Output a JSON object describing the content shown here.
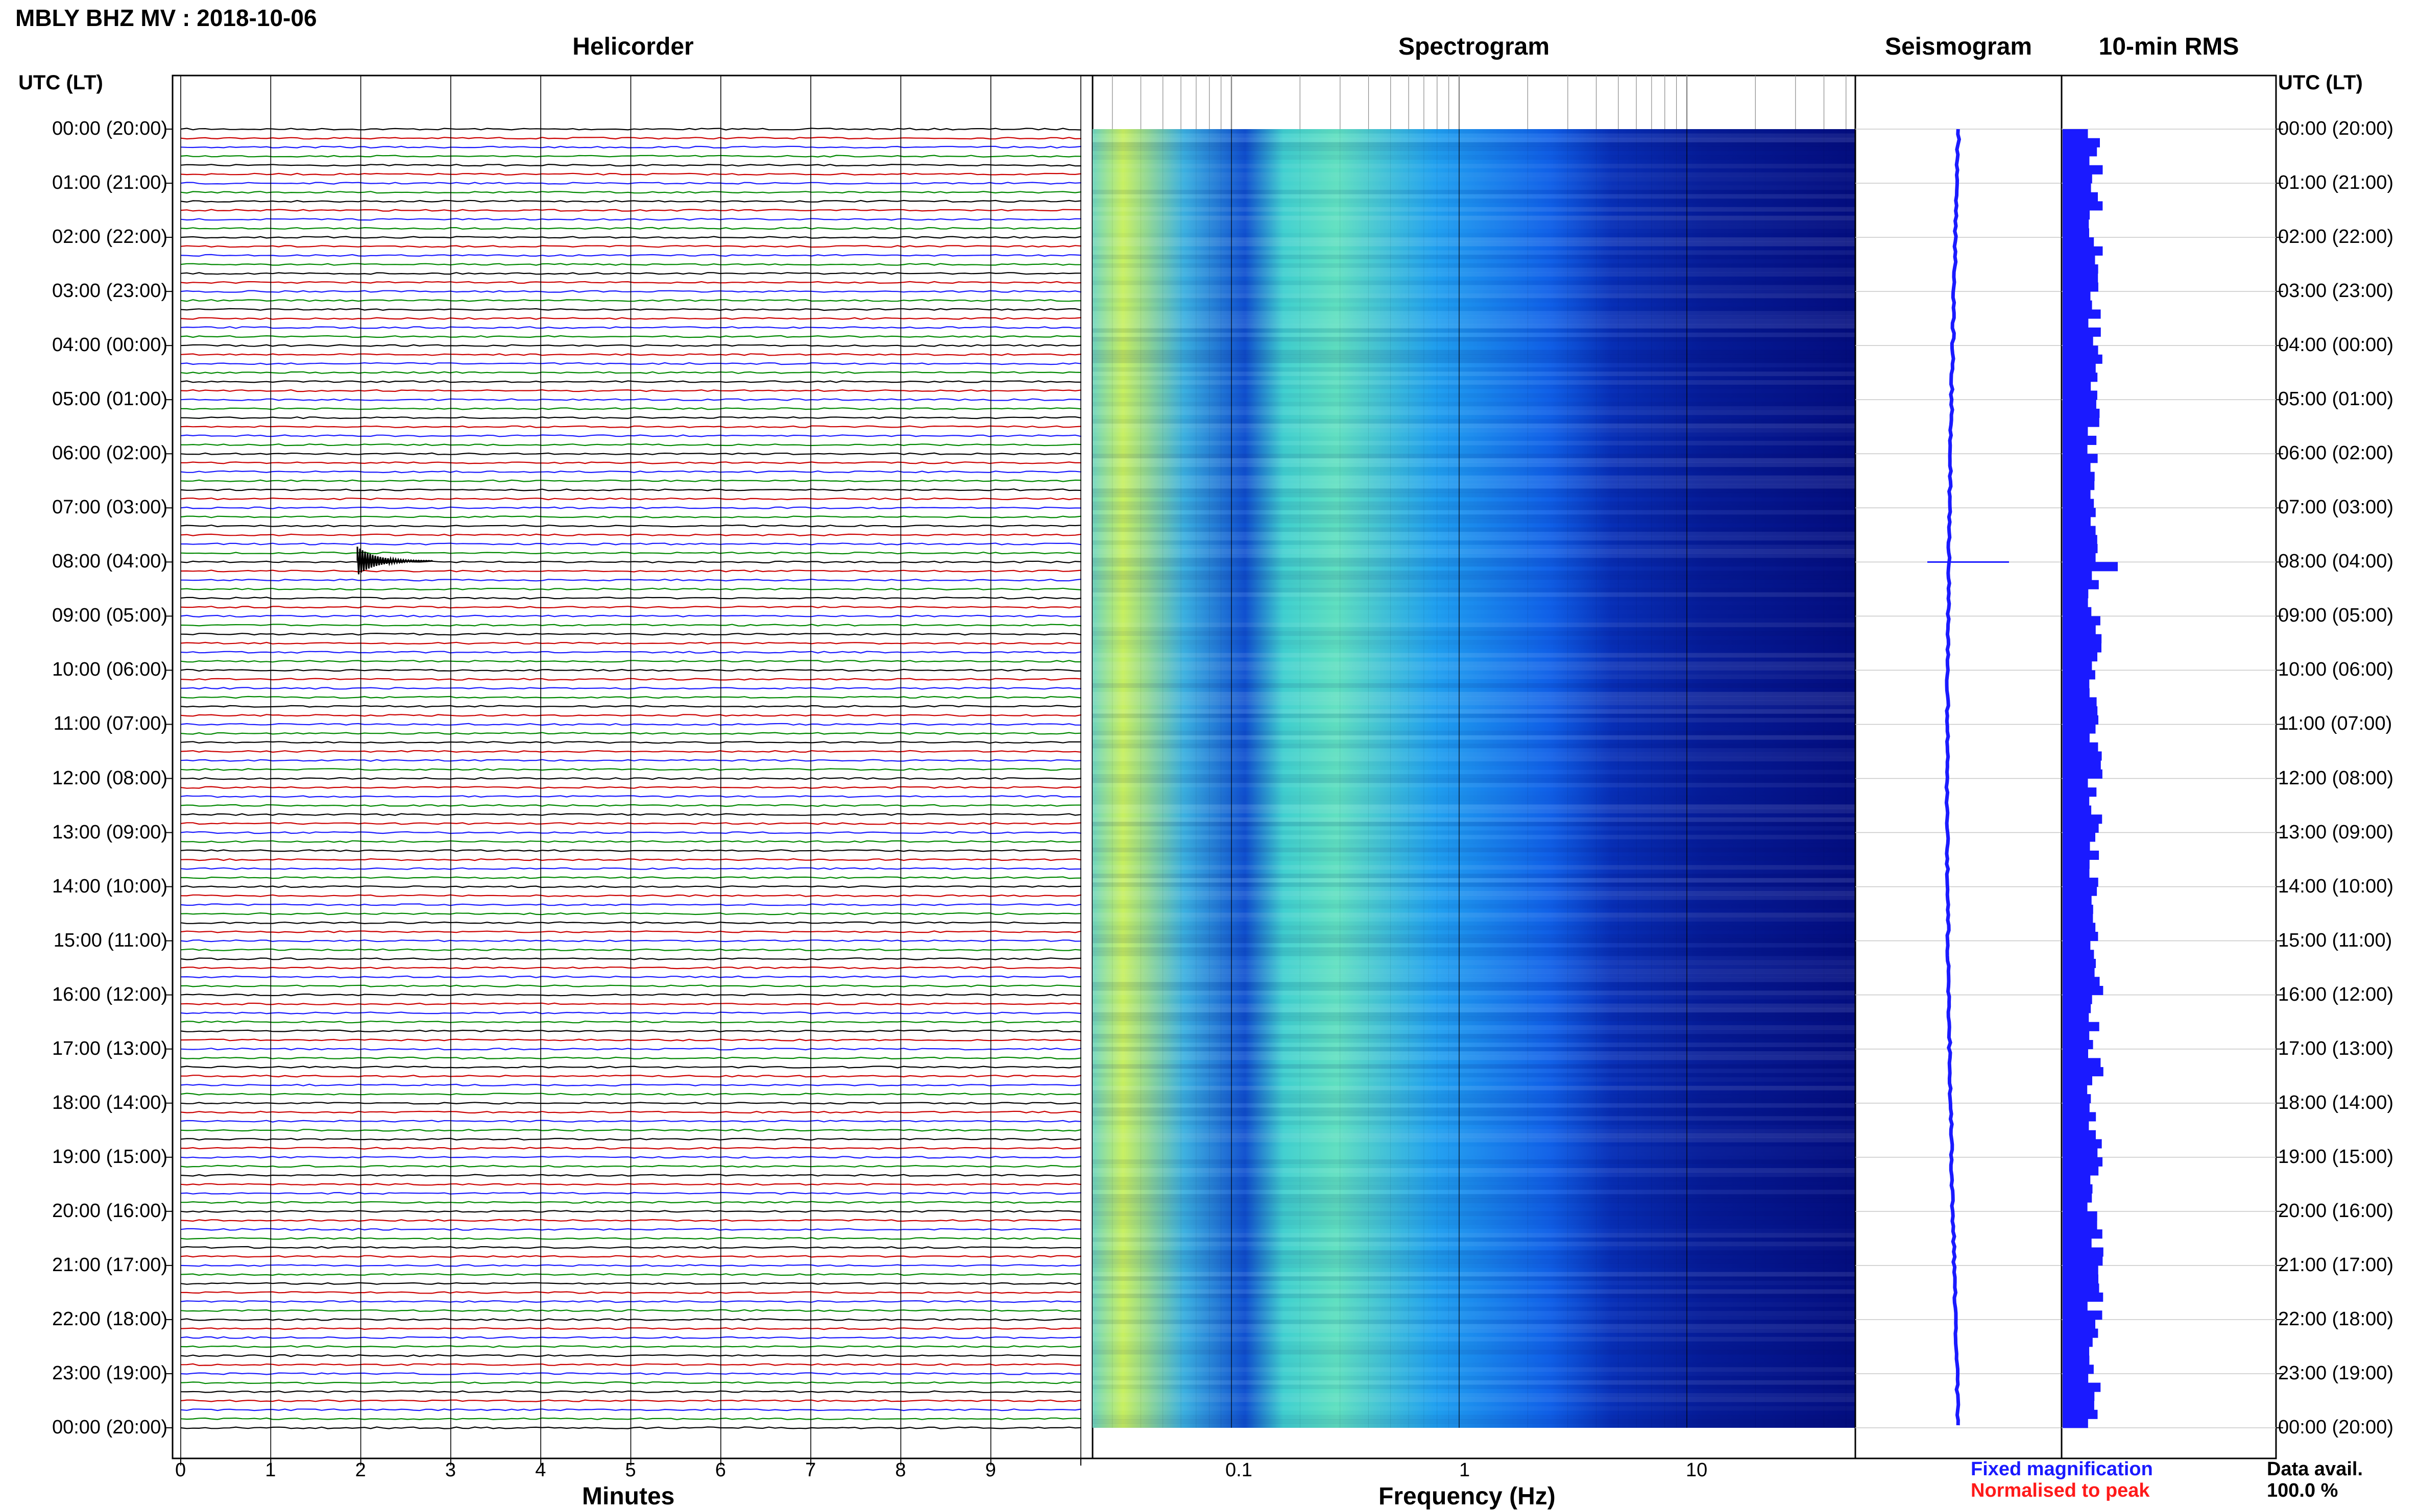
{
  "page_title": "MBLY BHZ MV : 2018-10-06",
  "panels": {
    "helicorder": "Helicorder",
    "spectrogram": "Spectrogram",
    "seismogram": "Seismogram",
    "rms": "10-min RMS"
  },
  "time_axis": {
    "header": "UTC (LT)",
    "ticks": [
      "00:00 (20:00)",
      "01:00 (21:00)",
      "02:00 (22:00)",
      "03:00 (23:00)",
      "04:00 (00:00)",
      "05:00 (01:00)",
      "06:00 (02:00)",
      "07:00 (03:00)",
      "08:00 (04:00)",
      "09:00 (05:00)",
      "10:00 (06:00)",
      "11:00 (07:00)",
      "12:00 (08:00)",
      "13:00 (09:00)",
      "14:00 (10:00)",
      "15:00 (11:00)",
      "16:00 (12:00)",
      "17:00 (13:00)",
      "18:00 (14:00)",
      "19:00 (15:00)",
      "20:00 (16:00)",
      "21:00 (17:00)",
      "22:00 (18:00)",
      "23:00 (19:00)",
      "00:00 (20:00)"
    ]
  },
  "helicorder_axis": {
    "title": "Minutes",
    "ticks": [
      "0",
      "1",
      "2",
      "3",
      "4",
      "5",
      "6",
      "7",
      "8",
      "9"
    ]
  },
  "spectrogram_axis": {
    "title": "Frequency (Hz)",
    "ticks": [
      "0.1",
      "1",
      "10"
    ]
  },
  "legend": {
    "fixed": "Fixed magnification",
    "normalised": "Normalised to peak",
    "fixed_color": "#1a1aff",
    "normalised_color": "#ff1a1a"
  },
  "data_availability": {
    "label": "Data avail.",
    "value": "100.0 %"
  },
  "colors": {
    "trace_cycle": [
      "#000000",
      "#cc0000",
      "#1a1aff",
      "#008800"
    ],
    "spectrogram_low": "#000088",
    "spectrogram_high": "#e0ff40",
    "seismogram": "#1a1aff",
    "rms_bars": "#1a1aff"
  }
}
